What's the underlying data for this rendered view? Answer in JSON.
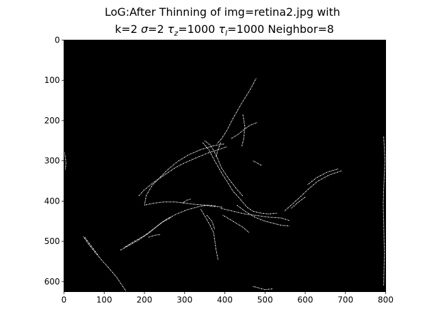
{
  "figure": {
    "title_line1": "LoG:After Thinning of img=retina2.jpg with",
    "title_line2_parts": [
      "k=2 ",
      "σ",
      "=2 ",
      "τ",
      "z",
      "=1000 ",
      "τ",
      "l",
      "=1000 Neighbor=8"
    ]
  },
  "image": {
    "background_color": "#000000",
    "edge_color": "#ffffff",
    "x_range": [
      0,
      800
    ],
    "y_range": [
      0,
      625
    ],
    "edge_paths": [
      [
        [
          478,
          95
        ],
        [
          462,
          125
        ],
        [
          440,
          160
        ],
        [
          420,
          195
        ],
        [
          405,
          225
        ],
        [
          392,
          245
        ],
        [
          380,
          258
        ]
      ],
      [
        [
          445,
          185
        ],
        [
          450,
          215
        ],
        [
          447,
          245
        ],
        [
          442,
          265
        ]
      ],
      [
        [
          480,
          205
        ],
        [
          462,
          212
        ],
        [
          448,
          222
        ],
        [
          432,
          235
        ],
        [
          415,
          245
        ]
      ],
      [
        [
          398,
          258
        ],
        [
          370,
          263
        ],
        [
          340,
          272
        ],
        [
          310,
          285
        ],
        [
          285,
          300
        ],
        [
          260,
          320
        ],
        [
          240,
          340
        ],
        [
          220,
          360
        ],
        [
          205,
          385
        ],
        [
          200,
          410
        ]
      ],
      [
        [
          405,
          265
        ],
        [
          385,
          272
        ],
        [
          360,
          280
        ],
        [
          330,
          292
        ],
        [
          300,
          305
        ],
        [
          275,
          318
        ],
        [
          250,
          335
        ],
        [
          225,
          352
        ],
        [
          200,
          372
        ],
        [
          185,
          388
        ]
      ],
      [
        [
          345,
          255
        ],
        [
          360,
          272
        ],
        [
          375,
          300
        ],
        [
          392,
          330
        ],
        [
          405,
          350
        ],
        [
          420,
          375
        ],
        [
          438,
          395
        ],
        [
          455,
          415
        ],
        [
          470,
          425
        ],
        [
          490,
          430
        ],
        [
          510,
          432
        ],
        [
          530,
          430
        ]
      ],
      [
        [
          350,
          250
        ],
        [
          365,
          262
        ],
        [
          378,
          285
        ],
        [
          392,
          318
        ],
        [
          410,
          345
        ],
        [
          428,
          368
        ],
        [
          445,
          388
        ]
      ],
      [
        [
          390,
          255
        ],
        [
          382,
          275
        ],
        [
          378,
          292
        ]
      ],
      [
        [
          470,
          300
        ],
        [
          480,
          305
        ],
        [
          492,
          312
        ]
      ],
      [
        [
          690,
          325
        ],
        [
          660,
          335
        ],
        [
          632,
          350
        ],
        [
          608,
          370
        ],
        [
          585,
          392
        ],
        [
          565,
          410
        ],
        [
          548,
          425
        ]
      ],
      [
        [
          682,
          320
        ],
        [
          655,
          328
        ],
        [
          628,
          342
        ],
        [
          605,
          360
        ]
      ],
      [
        [
          600,
          390
        ],
        [
          580,
          405
        ],
        [
          565,
          418
        ]
      ],
      [
        [
          200,
          410
        ],
        [
          225,
          405
        ],
        [
          250,
          402
        ],
        [
          275,
          402
        ],
        [
          300,
          405
        ],
        [
          325,
          408
        ],
        [
          350,
          410
        ],
        [
          370,
          413
        ],
        [
          395,
          415
        ]
      ],
      [
        [
          390,
          418
        ],
        [
          420,
          425
        ],
        [
          450,
          432
        ],
        [
          480,
          436
        ],
        [
          510,
          440
        ],
        [
          540,
          442
        ],
        [
          560,
          448
        ]
      ],
      [
        [
          295,
          405
        ],
        [
          305,
          398
        ],
        [
          315,
          395
        ]
      ],
      [
        [
          140,
          522
        ],
        [
          162,
          510
        ],
        [
          185,
          497
        ],
        [
          210,
          480
        ],
        [
          232,
          462
        ],
        [
          255,
          445
        ],
        [
          280,
          432
        ],
        [
          305,
          422
        ],
        [
          330,
          415
        ],
        [
          355,
          410
        ],
        [
          378,
          412
        ]
      ],
      [
        [
          150,
          515
        ],
        [
          175,
          500
        ],
        [
          200,
          486
        ],
        [
          222,
          470
        ],
        [
          245,
          452
        ],
        [
          268,
          440
        ]
      ],
      [
        [
          210,
          490
        ],
        [
          225,
          485
        ],
        [
          240,
          483
        ]
      ],
      [
        [
          340,
          420
        ],
        [
          352,
          440
        ],
        [
          362,
          458
        ],
        [
          372,
          478
        ],
        [
          375,
          498
        ],
        [
          378,
          520
        ],
        [
          383,
          545
        ]
      ],
      [
        [
          355,
          435
        ],
        [
          368,
          450
        ],
        [
          375,
          470
        ]
      ],
      [
        [
          395,
          435
        ],
        [
          420,
          450
        ],
        [
          445,
          465
        ],
        [
          460,
          478
        ]
      ],
      [
        [
          430,
          410
        ],
        [
          450,
          425
        ],
        [
          475,
          440
        ],
        [
          500,
          450
        ],
        [
          520,
          455
        ],
        [
          540,
          460
        ],
        [
          560,
          462
        ]
      ],
      [
        [
          48,
          488
        ],
        [
          62,
          508
        ],
        [
          78,
          528
        ],
        [
          95,
          548
        ],
        [
          112,
          567
        ],
        [
          130,
          588
        ],
        [
          145,
          610
        ],
        [
          155,
          625
        ]
      ],
      [
        [
          52,
          490
        ],
        [
          68,
          512
        ],
        [
          85,
          535
        ]
      ],
      [
        [
          0,
          275
        ],
        [
          3,
          290
        ],
        [
          5,
          305
        ],
        [
          3,
          322
        ]
      ],
      [
        [
          795,
          240
        ],
        [
          797,
          270
        ],
        [
          798,
          300
        ],
        [
          797,
          330
        ],
        [
          795,
          370
        ],
        [
          794,
          410
        ],
        [
          795,
          450
        ],
        [
          796,
          490
        ],
        [
          797,
          530
        ],
        [
          796,
          570
        ],
        [
          795,
          610
        ]
      ],
      [
        [
          470,
          612
        ],
        [
          485,
          616
        ],
        [
          500,
          620
        ],
        [
          520,
          618
        ]
      ]
    ]
  },
  "axes": {
    "x_ticks": [
      0,
      100,
      200,
      300,
      400,
      500,
      600,
      700,
      800
    ],
    "y_ticks": [
      0,
      100,
      200,
      300,
      400,
      500,
      600
    ]
  }
}
